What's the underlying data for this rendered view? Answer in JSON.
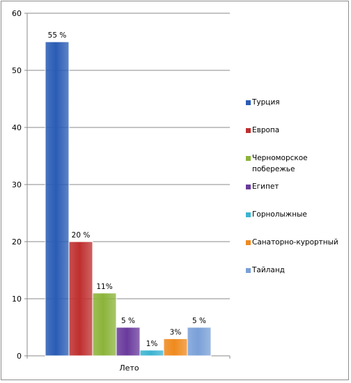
{
  "chart_data": {
    "type": "bar",
    "categories": [
      "Лето"
    ],
    "series": [
      {
        "name": "Турция",
        "values": [
          55
        ],
        "label": "55 %",
        "color": "#2a5cb5"
      },
      {
        "name": "Европа",
        "values": [
          20
        ],
        "label": "20 %",
        "color": "#bf2f2f"
      },
      {
        "name": "Черноморское побережье",
        "values": [
          11
        ],
        "label": "11%",
        "color": "#8cb43a"
      },
      {
        "name": "Египет",
        "values": [
          5
        ],
        "label": "5 %",
        "color": "#6a3a9c"
      },
      {
        "name": "Горнолыжные",
        "values": [
          1
        ],
        "label": "1%",
        "color": "#3cb4d2"
      },
      {
        "name": "Санаторно-курортный",
        "values": [
          3
        ],
        "label": "3%",
        "color": "#ef8a1e"
      },
      {
        "name": "Тайланд",
        "values": [
          5
        ],
        "label": "5 %",
        "color": "#7aa0d8"
      }
    ],
    "ylim": [
      0,
      60
    ],
    "yticks": [
      0,
      10,
      20,
      30,
      40,
      50,
      60
    ],
    "grid": true,
    "legend_position": "right"
  }
}
